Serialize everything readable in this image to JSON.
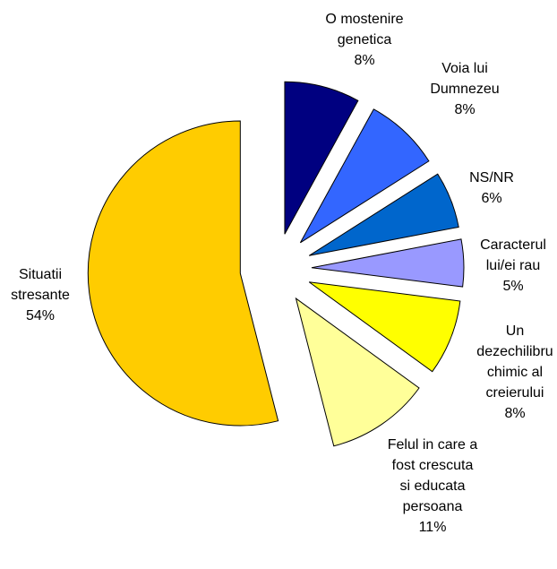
{
  "chart_data": {
    "type": "pie",
    "categories": [
      "O mostenire genetica",
      "Voia lui Dumnezeu",
      "NS/NR",
      "Caracterul lui/ei rau",
      "Un dezechilibru chimic al creierului",
      "Felul in care a fost crescuta si educata persoana",
      "Situatii stresante"
    ],
    "values": [
      8,
      8,
      6,
      5,
      8,
      11,
      54
    ],
    "value_labels": [
      "8%",
      "8%",
      "6%",
      "5%",
      "8%",
      "11%",
      "54%"
    ],
    "colors": [
      "#000080",
      "#3366ff",
      "#0066cc",
      "#9999ff",
      "#ffff00",
      "#ffff99",
      "#ffcc00"
    ]
  }
}
